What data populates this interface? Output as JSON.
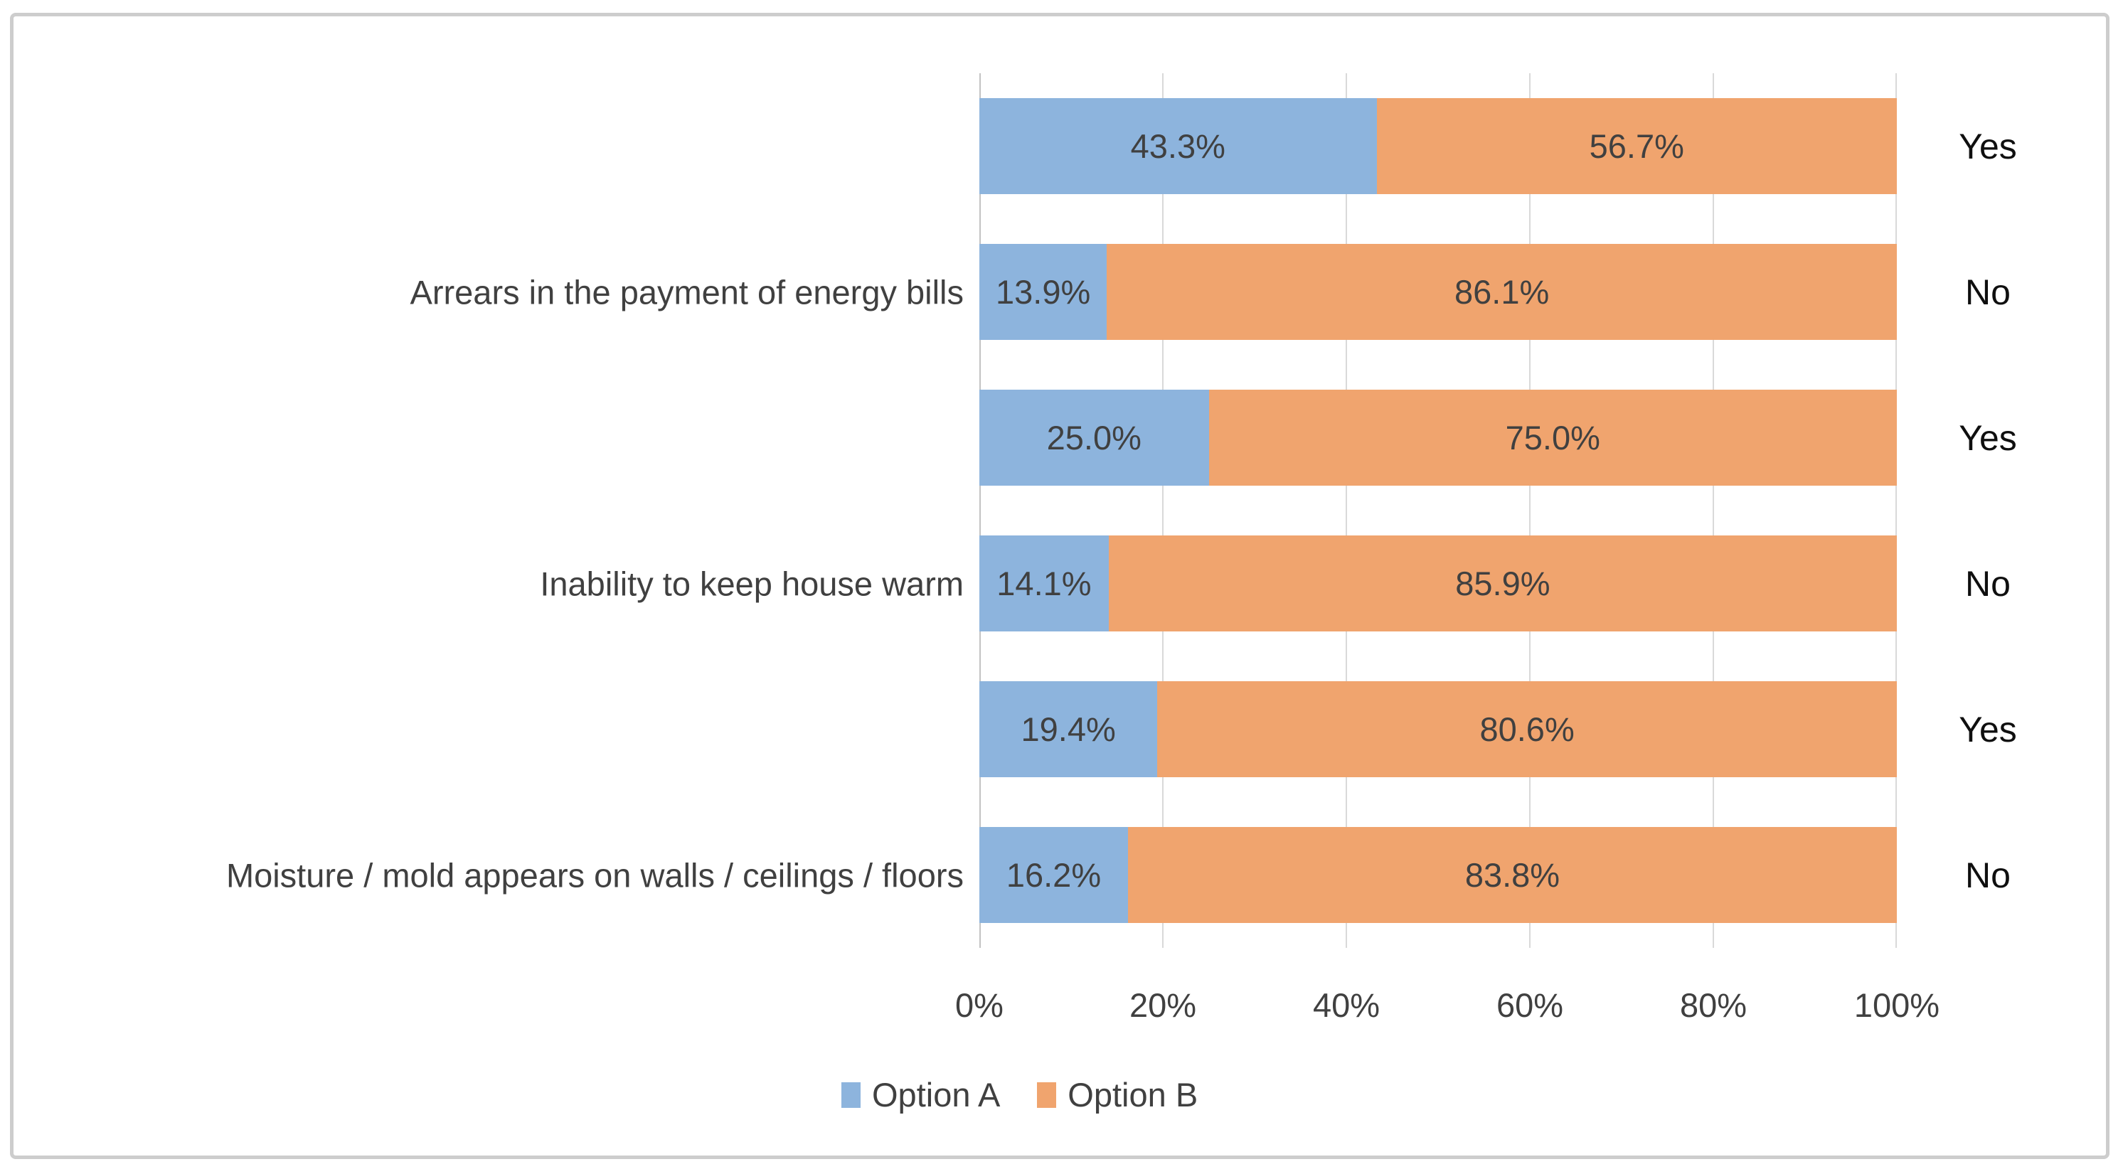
{
  "chart_data": {
    "type": "bar",
    "subtype": "horizontal-100%-stacked",
    "title": "",
    "x_axis": {
      "ticks": [
        "0%",
        "20%",
        "40%",
        "60%",
        "80%",
        "100%"
      ],
      "range": [
        0,
        100
      ],
      "grid": true
    },
    "categories": [
      "Arrears in the payment of energy bills",
      "Inability to keep house warm",
      "Moisture / mold appears on walls / ceilings / floors"
    ],
    "rows": [
      {
        "group": "Arrears in the payment of energy bills",
        "answer": "Yes",
        "option_a": 43.3,
        "option_b": 56.7,
        "label_a": "43.3%",
        "label_b": "56.7%"
      },
      {
        "group": "Arrears in the payment of energy bills",
        "answer": "No",
        "option_a": 13.9,
        "option_b": 86.1,
        "label_a": "13.9%",
        "label_b": "86.1%"
      },
      {
        "group": "Inability to keep house warm",
        "answer": "Yes",
        "option_a": 25.0,
        "option_b": 75.0,
        "label_a": "25.0%",
        "label_b": "75.0%"
      },
      {
        "group": "Inability to keep house warm",
        "answer": "No",
        "option_a": 14.1,
        "option_b": 85.9,
        "label_a": "14.1%",
        "label_b": "85.9%"
      },
      {
        "group": "Moisture / mold appears on walls / ceilings / floors",
        "answer": "Yes",
        "option_a": 19.4,
        "option_b": 80.6,
        "label_a": "19.4%",
        "label_b": "80.6%"
      },
      {
        "group": "Moisture / mold appears on walls / ceilings / floors",
        "answer": "No",
        "option_a": 16.2,
        "option_b": 83.8,
        "label_a": "16.2%",
        "label_b": "83.8%"
      }
    ],
    "series": [
      {
        "name": "Option A",
        "color": "#8DB4DD"
      },
      {
        "name": "Option B",
        "color": "#F0A46E"
      }
    ],
    "legend": {
      "position": "bottom",
      "entries": [
        {
          "label": "Option A",
          "color": "#8DB4DD"
        },
        {
          "label": "Option B",
          "color": "#F0A46E"
        }
      ]
    },
    "colors": {
      "option_a": "#8DB4DD",
      "option_b": "#F0A46E",
      "data_label": "#404040",
      "axis_label": "#404040",
      "answer_label": "#0f0f0f",
      "gridline": "#d9d9d9",
      "axis_line": "#c3c3c3",
      "frame_border": "#cdcdcd"
    }
  }
}
